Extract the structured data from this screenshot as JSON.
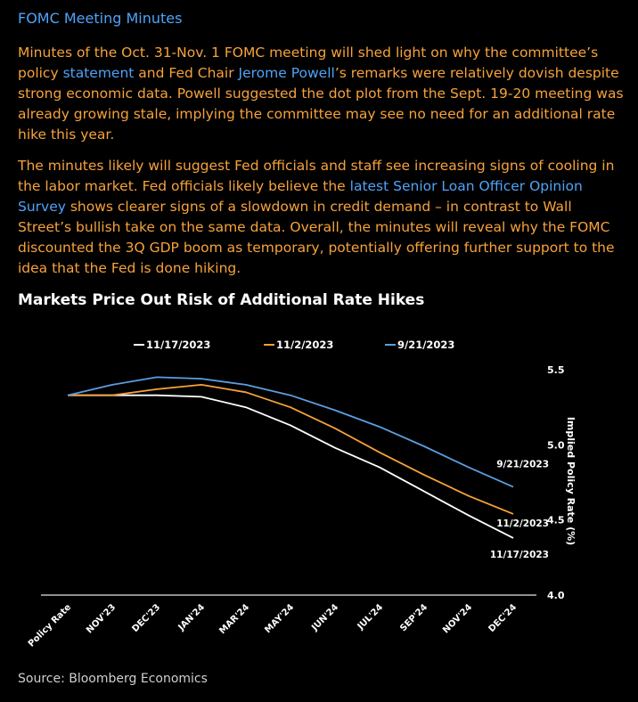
{
  "header": {
    "title": "FOMC Meeting Minutes"
  },
  "article": {
    "p1": [
      {
        "text": "Minutes of the Oct. 31-Nov. 1 FOMC meeting will shed light on why the committee’s policy "
      },
      {
        "text": "statement",
        "link": true
      },
      {
        "text": " and Fed Chair "
      },
      {
        "text": "Jerome Powell",
        "link": true
      },
      {
        "text": "’s remarks were relatively dovish despite strong economic data. Powell suggested the dot plot from the Sept. 19-20 meeting was already growing stale, implying the committee may see no need for an additional rate hike this year."
      }
    ],
    "p2": [
      {
        "text": "The minutes likely will suggest Fed officials and staff see increasing signs of cooling in the labor market. Fed officials likely believe the "
      },
      {
        "text": "latest Senior Loan Officer Opinion Survey",
        "link": true
      },
      {
        "text": " shows clearer signs of a slowdown in credit demand – in contrast to Wall Street’s bullish take on the same data. Overall, the minutes will reveal why the FOMC discounted the 3Q GDP boom as temporary, potentially offering further support to the idea that the Fed is done hiking."
      }
    ]
  },
  "chart_data": {
    "type": "line",
    "title": "Markets Price Out Risk of Additional Rate Hikes",
    "xlabel": "",
    "ylabel": "Implied Policy Rate (%)",
    "categories": [
      "Policy Rate",
      "NOV'23",
      "DEC'23",
      "JAN'24",
      "MAR'24",
      "MAY'24",
      "JUN'24",
      "JUL'24",
      "SEP'24",
      "NOV'24",
      "DEC'24"
    ],
    "yticks": [
      "4.0",
      "4.5",
      "5.0",
      "5.5"
    ],
    "ylim": [
      4.0,
      5.5
    ],
    "grid": false,
    "legend_position": "top",
    "series": [
      {
        "name": "11/17/2023",
        "label": "11/17/2023",
        "color": "#ffffff",
        "values": [
          5.33,
          5.33,
          5.33,
          5.32,
          5.25,
          5.13,
          4.98,
          4.85,
          4.69,
          4.53,
          4.38
        ]
      },
      {
        "name": "11/2/2023",
        "label": "11/2/2023",
        "color": "#f7a23b",
        "values": [
          5.33,
          5.33,
          5.37,
          5.4,
          5.35,
          5.25,
          5.11,
          4.95,
          4.8,
          4.66,
          4.54
        ]
      },
      {
        "name": "9/21/2023",
        "label": "9/21/2023",
        "color": "#5a9ee0",
        "values": [
          5.33,
          5.4,
          5.45,
          5.44,
          5.4,
          5.33,
          5.23,
          5.12,
          4.99,
          4.85,
          4.72
        ]
      }
    ]
  },
  "source": "Source: Bloomberg Economics"
}
